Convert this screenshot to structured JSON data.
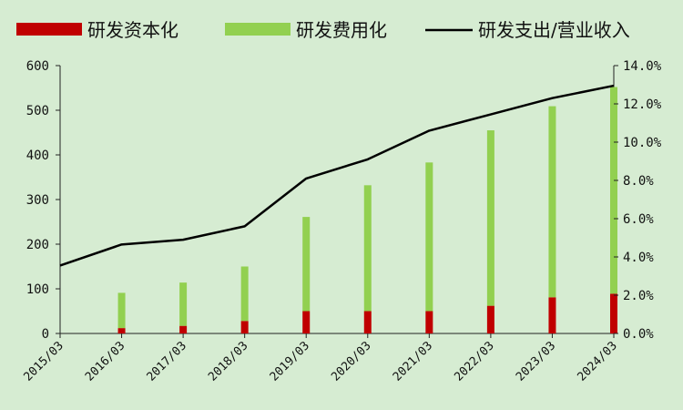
{
  "chart_data": {
    "type": "bar",
    "categories": [
      "2015/03",
      "2016/03",
      "2017/03",
      "2018/03",
      "2019/03",
      "2020/03",
      "2021/03",
      "2022/03",
      "2023/03",
      "2024/03"
    ],
    "series": [
      {
        "name": "研发资本化",
        "type": "bar",
        "stack": "rd",
        "axis": "left",
        "color": "#c00000",
        "values": [
          0,
          12,
          17,
          28,
          50,
          50,
          50,
          62,
          81,
          89
        ]
      },
      {
        "name": "研发费用化",
        "type": "bar",
        "stack": "rd",
        "axis": "left",
        "color": "#92d050",
        "values": [
          0,
          79,
          97,
          122,
          211,
          282,
          333,
          393,
          428,
          463
        ]
      },
      {
        "name": "研发支出/营业收入",
        "type": "line",
        "axis": "right",
        "color": "#000000",
        "values": [
          3.55,
          4.65,
          4.9,
          5.6,
          8.1,
          9.1,
          10.6,
          11.45,
          12.3,
          12.95
        ]
      }
    ],
    "left_axis": {
      "ylim": [
        0,
        600
      ],
      "ticks": [
        0,
        100,
        200,
        300,
        400,
        500,
        600
      ],
      "tick_labels": [
        "0",
        "100",
        "200",
        "300",
        "400",
        "500",
        "600"
      ]
    },
    "right_axis": {
      "ylim": [
        0,
        14
      ],
      "ticks": [
        0,
        2,
        4,
        6,
        8,
        10,
        12,
        14
      ],
      "tick_labels": [
        "0.0%",
        "2.0%",
        "4.0%",
        "6.0%",
        "8.0%",
        "10.0%",
        "12.0%",
        "14.0%"
      ]
    },
    "legend_position": "top",
    "grid": false,
    "background": "#d6ecd2"
  }
}
